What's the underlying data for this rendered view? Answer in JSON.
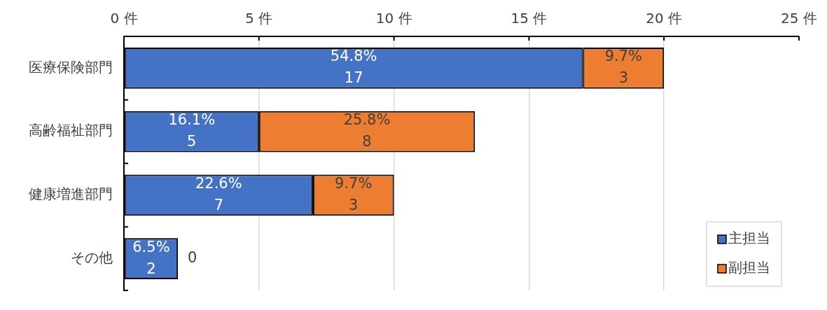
{
  "chart_data": {
    "type": "bar",
    "orientation": "horizontal",
    "stacked": true,
    "categories": [
      "医療保険部門",
      "高齢福祉部門",
      "健康増進部門",
      "その他"
    ],
    "series": [
      {
        "name": "主担当",
        "color": "#4472c4",
        "values": [
          17,
          5,
          7,
          2
        ],
        "value_labels": [
          "54.8%\n17",
          "16.1%\n5",
          "22.6%\n7",
          "6.5%\n2"
        ]
      },
      {
        "name": "副担当",
        "color": "#ed7d31",
        "values": [
          3,
          8,
          3,
          0
        ],
        "value_labels": [
          "9.7%\n3",
          "25.8%\n8",
          "9.7%\n3",
          "0"
        ]
      }
    ],
    "xlim": [
      0,
      25
    ],
    "xticks": [
      {
        "value": 0,
        "label": "0 件"
      },
      {
        "value": 5,
        "label": "5 件"
      },
      {
        "value": 10,
        "label": "10 件"
      },
      {
        "value": 15,
        "label": "15 件"
      },
      {
        "value": 20,
        "label": "20 件"
      },
      {
        "value": 25,
        "label": "25 件"
      }
    ],
    "grid": "x",
    "legend": "bottom right"
  }
}
